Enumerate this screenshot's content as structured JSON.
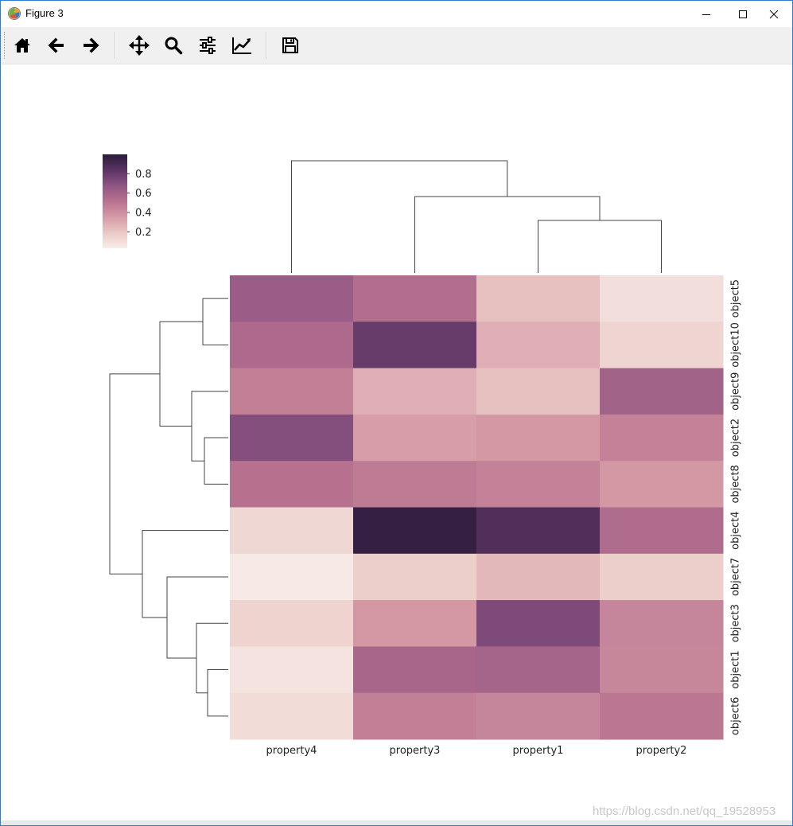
{
  "window": {
    "title": "Figure 3",
    "controls": [
      "minimize",
      "maximize",
      "close"
    ]
  },
  "toolbar": {
    "buttons": [
      {
        "name": "home",
        "icon": "home-icon"
      },
      {
        "name": "back",
        "icon": "arrow-left-icon"
      },
      {
        "name": "forward",
        "icon": "arrow-right-icon"
      },
      {
        "name": "pan",
        "icon": "move-icon"
      },
      {
        "name": "zoom",
        "icon": "magnifier-icon"
      },
      {
        "name": "configure-subplots",
        "icon": "sliders-icon"
      },
      {
        "name": "edit-axis",
        "icon": "line-chart-icon"
      },
      {
        "name": "save",
        "icon": "floppy-disk-icon"
      }
    ]
  },
  "watermark": "https://blog.csdn.net/qq_19528953",
  "chart_data": {
    "type": "heatmap",
    "title": "",
    "columns": [
      "property4",
      "property3",
      "property1",
      "property2"
    ],
    "rows": [
      "object5",
      "object10",
      "object9",
      "object2",
      "object8",
      "object4",
      "object7",
      "object3",
      "object1",
      "object6"
    ],
    "values": [
      [
        0.63,
        0.54,
        0.22,
        0.1
      ],
      [
        0.56,
        0.8,
        0.28,
        0.14
      ],
      [
        0.46,
        0.28,
        0.22,
        0.6
      ],
      [
        0.71,
        0.34,
        0.36,
        0.45
      ],
      [
        0.52,
        0.48,
        0.45,
        0.36
      ],
      [
        0.13,
        0.97,
        0.87,
        0.55
      ],
      [
        0.05,
        0.17,
        0.25,
        0.17
      ],
      [
        0.15,
        0.36,
        0.73,
        0.44
      ],
      [
        0.08,
        0.58,
        0.59,
        0.43
      ],
      [
        0.11,
        0.46,
        0.44,
        0.5
      ]
    ],
    "colorbar": {
      "ticks": [
        "0.2",
        "0.4",
        "0.6",
        "0.8"
      ],
      "tick_values": [
        0.2,
        0.4,
        0.6,
        0.8
      ],
      "range": [
        0.03,
        1.0
      ],
      "colormap": [
        "#f8eeea",
        "#eac9c6",
        "#d59aa6",
        "#b8728f",
        "#8f5584",
        "#5a3463",
        "#2c1b3c"
      ]
    },
    "col_dendrogram": {
      "merges": [
        {
          "left": "property1",
          "right": "property2"
        },
        {
          "left": "property3",
          "right": "property1+property2"
        },
        {
          "left": "property4",
          "right": "property3+property1+property2"
        }
      ]
    },
    "row_dendrogram": {
      "merges": [
        {
          "left": "object5",
          "right": "object10"
        },
        {
          "left": "object2",
          "right": "object8"
        },
        {
          "left": "object9",
          "right": "object2+object8"
        },
        {
          "left": "object5+object10",
          "right": "object9+object2+object8"
        },
        {
          "left": "object1",
          "right": "object6"
        },
        {
          "left": "object3",
          "right": "object1+object6"
        },
        {
          "left": "object7",
          "right": "object3+object1+object6"
        },
        {
          "left": "object4",
          "right": "object7+object3+object1+object6"
        },
        {
          "left": "upper-cluster",
          "right": "lower-cluster"
        }
      ]
    }
  }
}
